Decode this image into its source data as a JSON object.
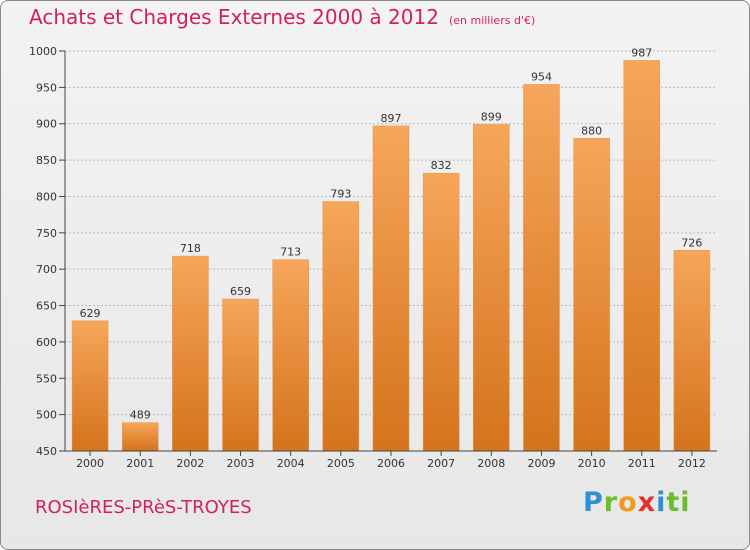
{
  "header": {
    "title": "Achats et Charges Externes 2000 à 2012",
    "unit": "(en milliers d'€)"
  },
  "footer": {
    "town": "ROSIèRES-PRèS-TROYES",
    "logo_letters": [
      "P",
      "r",
      "o",
      "x",
      "i",
      "ti"
    ]
  },
  "colors": {
    "bar_top": "#f6a65a",
    "bar_bottom": "#d4731c",
    "title": "#d11f63"
  },
  "chart_data": {
    "type": "bar",
    "categories": [
      "2000",
      "2001",
      "2002",
      "2003",
      "2004",
      "2005",
      "2006",
      "2007",
      "2008",
      "2009",
      "2010",
      "2011",
      "2012"
    ],
    "values": [
      629,
      489,
      718,
      659,
      713,
      793,
      897,
      832,
      899,
      954,
      880,
      987,
      726
    ],
    "data_labels": [
      "629",
      "489",
      "718",
      "659",
      "713",
      "793",
      "897",
      "832",
      "899",
      "954",
      "880",
      "987",
      "726"
    ],
    "ylim": [
      450,
      1000
    ],
    "yticks": [
      450,
      500,
      550,
      600,
      650,
      700,
      750,
      800,
      850,
      900,
      950,
      1000
    ],
    "grid": true
  }
}
